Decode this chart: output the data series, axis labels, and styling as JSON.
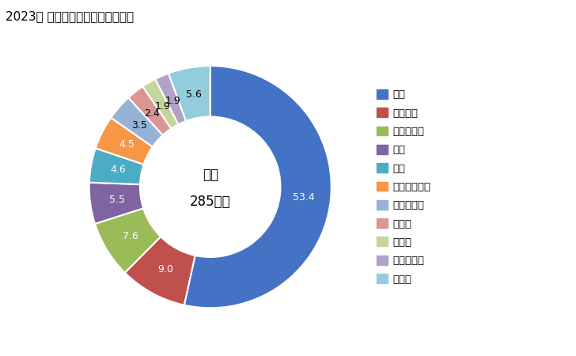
{
  "title": "2023年 輸入相手国のシェア（％）",
  "center_label1": "総額",
  "center_label2": "285億円",
  "labels": [
    "中国",
    "ベトナム",
    "フィリピン",
    "タイ",
    "米国",
    "インドネシア",
    "イスラエル",
    "チェコ",
    "ドイツ",
    "マレーシア",
    "その他"
  ],
  "values": [
    53.4,
    9.0,
    7.6,
    5.5,
    4.6,
    4.5,
    3.5,
    2.4,
    1.9,
    1.9,
    5.6
  ],
  "colors": [
    "#4472C4",
    "#C0504D",
    "#9BBB59",
    "#8064A2",
    "#4BACC6",
    "#F79646",
    "#95B3D7",
    "#D99694",
    "#C3D69B",
    "#B2A2C7",
    "#93CDDD"
  ],
  "label_colors": [
    "white",
    "white",
    "white",
    "white",
    "white",
    "white",
    "black",
    "black",
    "black",
    "black",
    "black"
  ],
  "title_fontsize": 11,
  "legend_fontsize": 9.5,
  "label_fontsize": 9
}
